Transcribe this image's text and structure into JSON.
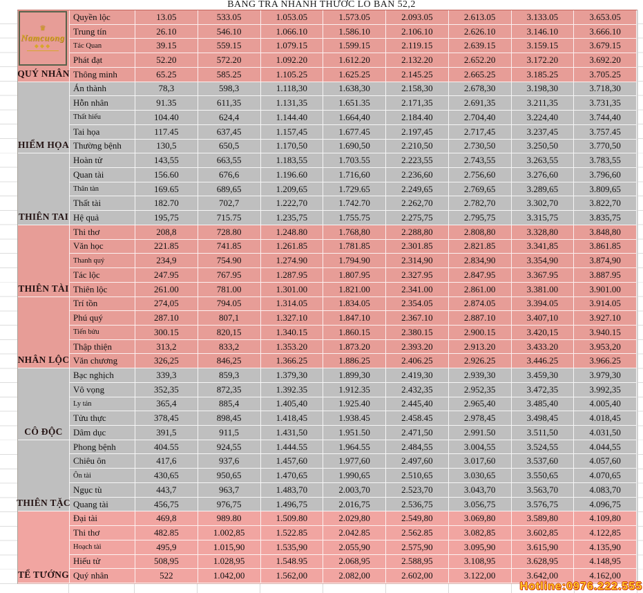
{
  "title": "BANG TRA NHANH THƯỚC LO BAN 52,2",
  "hotline": "Hotline:0976.222.555",
  "logo": {
    "brand": "Namcuong",
    "crown": "♛",
    "flourish": "◆◆◆"
  },
  "colors": {
    "pink": "#e79d97",
    "pink_bright": "#f1a5a1",
    "gray": "#bfbfbf"
  },
  "table": {
    "groups": [
      {
        "label": "QUÝ NHÂN",
        "color_key": "pink",
        "has_logo": true,
        "rows": [
          {
            "name": "Quyền lộc",
            "values": [
              "13.05",
              "533.05",
              "1.053.05",
              "1.573.05",
              "2.093.05",
              "2.613.05",
              "3.133.05",
              "3.653.05"
            ]
          },
          {
            "name": "Trung tín",
            "values": [
              "26.10",
              "546.10",
              "1.066.10",
              "1.586.10",
              "2.106.10",
              "2.626.10",
              "3.146.10",
              "3.666.10"
            ]
          },
          {
            "name": "Tác Quan",
            "small": true,
            "values": [
              "39.15",
              "559.15",
              "1.079.15",
              "1.599.15",
              "2.119.15",
              "2.639.15",
              "3.159.15",
              "3.679.15"
            ]
          },
          {
            "name": "Phát đạt",
            "values": [
              "52.20",
              "572.20",
              "1.092.20",
              "1.612.20",
              "2.132.20",
              "2.652.20",
              "3.172.20",
              "3.692.20"
            ]
          },
          {
            "name": "Thông minh",
            "values": [
              "65.25",
              "585.25",
              "1.105.25",
              "1.625.25",
              "2.145.25",
              "2.665.25",
              "3.185.25",
              "3.705.25"
            ]
          }
        ]
      },
      {
        "label": "HIỂM HỌA",
        "color_key": "gray",
        "rows": [
          {
            "name": "Án thành",
            "values": [
              "78,3",
              "598,3",
              "1.118,30",
              "1.638,30",
              "2.158,30",
              "2.678,30",
              "3.198,30",
              "3.718,30"
            ]
          },
          {
            "name": "Hỗn nhân",
            "values": [
              "91.35",
              "611,35",
              "1.131,35",
              "1.651.35",
              "2.171,35",
              "2.691,35",
              "3.211,35",
              "3.731,35"
            ]
          },
          {
            "name": "Thất hiếu",
            "small": true,
            "values": [
              "104.40",
              "624,4",
              "1.144.40",
              "1.664,40",
              "2.184.40",
              "2.704,40",
              "3.224,40",
              "3.744,40"
            ]
          },
          {
            "name": "Tai họa",
            "values": [
              "117.45",
              "637,45",
              "1.157,45",
              "1.677.45",
              "2.197,45",
              "2.717,45",
              "3.237,45",
              "3.757.45"
            ]
          },
          {
            "name": "Thường bệnh",
            "values": [
              "130,5",
              "650,5",
              "1.170,50",
              "1.690,50",
              "2.210,50",
              "2.730,50",
              "3.250,50",
              "3.770,50"
            ]
          }
        ]
      },
      {
        "label": "THIÊN TAI",
        "color_key": "gray",
        "rows": [
          {
            "name": "Hoàn tử",
            "values": [
              "143,55",
              "663,55",
              "1.183,55",
              "1.703.55",
              "2.223,55",
              "2.743,55",
              "3.263,55",
              "3.783,55"
            ]
          },
          {
            "name": "Quan tài",
            "values": [
              "156.60",
              "676,6",
              "1.196.60",
              "1.716,60",
              "2.236,60",
              "2.756,60",
              "3.276,60",
              "3.796,60"
            ]
          },
          {
            "name": "Thân tàn",
            "small": true,
            "values": [
              "169.65",
              "689,65",
              "1.209,65",
              "1.729.65",
              "2.249,65",
              "2.769,65",
              "3.289,65",
              "3.809,65"
            ]
          },
          {
            "name": "Thất tài",
            "values": [
              "182.70",
              "702,7",
              "1.222,70",
              "1.742.70",
              "2.262,70",
              "2.782,70",
              "3.302,70",
              "3.822,70"
            ]
          },
          {
            "name": "Hệ quả",
            "values": [
              "195,75",
              "715.75",
              "1.235,75",
              "1.755.75",
              "2.275,75",
              "2.795,75",
              "3.315,75",
              "3.835,75"
            ]
          }
        ]
      },
      {
        "label": "THIÊN TÀI",
        "color_key": "pink",
        "rows": [
          {
            "name": "Thi thơ",
            "values": [
              "208,8",
              "728.80",
              "1.248.80",
              "1.768,80",
              "2.288,80",
              "2.808,80",
              "3.328,80",
              "3.848,80"
            ]
          },
          {
            "name": "Văn học",
            "values": [
              "221.85",
              "741.85",
              "1.261.85",
              "1.781.85",
              "2.301.85",
              "2.821.85",
              "3.341,85",
              "3.861.85"
            ]
          },
          {
            "name": "Thanh quý",
            "small": true,
            "values": [
              "234,9",
              "754.90",
              "1.274.90",
              "1.794.90",
              "2.314,90",
              "2.834,90",
              "3.354,90",
              "3.874,90"
            ]
          },
          {
            "name": "Tác lộc",
            "values": [
              "247.95",
              "767.95",
              "1.287.95",
              "1.807.95",
              "2.327.95",
              "2.847.95",
              "3.367.95",
              "3.887.95"
            ]
          },
          {
            "name": "Thiên lộc",
            "values": [
              "261.00",
              "781.00",
              "1.301.00",
              "1.821.00",
              "2.341.00",
              "2.861.00",
              "3.381.00",
              "3.901.00"
            ]
          }
        ]
      },
      {
        "label": "NHÂN LỘC",
        "color_key": "pink",
        "rows": [
          {
            "name": "Trí tồn",
            "values": [
              "274,05",
              "794.05",
              "1.314.05",
              "1.834.05",
              "2.354.05",
              "2.874.05",
              "3.394.05",
              "3.914.05"
            ]
          },
          {
            "name": "Phú quý",
            "values": [
              "287.10",
              "807,1",
              "1.327.10",
              "1.847.10",
              "2.367.10",
              "2.887.10",
              "3.407,10",
              "3.927.10"
            ]
          },
          {
            "name": "Tiến bửu",
            "small": true,
            "values": [
              "300.15",
              "820,15",
              "1.340.15",
              "1.860.15",
              "2.380.15",
              "2.900.15",
              "3.420,15",
              "3.940.15"
            ]
          },
          {
            "name": "Thập thiện",
            "values": [
              "313,2",
              "833,2",
              "1.353.20",
              "1.873.20",
              "2.393.20",
              "2.913.20",
              "3.433.20",
              "3.953,20"
            ]
          },
          {
            "name": "Văn chương",
            "values": [
              "326,25",
              "846,25",
              "1.366.25",
              "1.886.25",
              "2.406.25",
              "2.926.25",
              "3.446.25",
              "3.966.25"
            ]
          }
        ]
      },
      {
        "label": "CÔ ĐỘC",
        "color_key": "gray",
        "rows": [
          {
            "name": "Bạc nghịch",
            "values": [
              "339,3",
              "859,3",
              "1.379,30",
              "1.899,30",
              "2.419,30",
              "2.939,30",
              "3.459,30",
              "3.979,30"
            ]
          },
          {
            "name": "Vô vọng",
            "values": [
              "352,35",
              "872,35",
              "1.392.35",
              "1.912.35",
              "2.432,35",
              "2.952,35",
              "3.472,35",
              "3.992,35"
            ]
          },
          {
            "name": "Ly tán",
            "small": true,
            "values": [
              "365,4",
              "885,4",
              "1.405,40",
              "1.925.40",
              "2.445,40",
              "2.965,40",
              "3.485,40",
              "4.005,40"
            ]
          },
          {
            "name": "Tửu thực",
            "values": [
              "378,45",
              "898,45",
              "1.418,45",
              "1.938.45",
              "2.458.45",
              "2.978,45",
              "3.498,45",
              "4.018,45"
            ]
          },
          {
            "name": "Dâm dục",
            "values": [
              "391,5",
              "911,5",
              "1.431,50",
              "1.951.50",
              "2.471,50",
              "2.991.50",
              "3.511,50",
              "4.031,50"
            ]
          }
        ]
      },
      {
        "label": "THIÊN TẶC",
        "color_key": "gray",
        "rows": [
          {
            "name": "Phong bệnh",
            "values": [
              "404.55",
              "924,55",
              "1.444.55",
              "1.964.55",
              "2.484,55",
              "3.004,55",
              "3.524,55",
              "4.044,55"
            ]
          },
          {
            "name": "Chiêu ôn",
            "values": [
              "417,6",
              "937,6",
              "1.457,60",
              "1.977,60",
              "2.497,60",
              "3.017,60",
              "3.537,60",
              "4.057,60"
            ]
          },
          {
            "name": "Ôn tài",
            "small": true,
            "values": [
              "430,65",
              "950,65",
              "1.470,65",
              "1.990,65",
              "2.510,65",
              "3.030,65",
              "3.550,65",
              "4.070,65"
            ]
          },
          {
            "name": "Ngục tù",
            "values": [
              "443,7",
              "963,7",
              "1.483,70",
              "2.003,70",
              "2.523,70",
              "3.043,70",
              "3.563,70",
              "4.083,70"
            ]
          },
          {
            "name": "Quang tài",
            "values": [
              "456,75",
              "976,75",
              "1.496,75",
              "2.016,75",
              "2.536,75",
              "3.056,75",
              "3.576,75",
              "4.096,75"
            ]
          }
        ]
      },
      {
        "label": "TỂ TƯỚNG",
        "color_key": "pink_bright",
        "rows": [
          {
            "name": "Đại tài",
            "values": [
              "469,8",
              "989.80",
              "1.509.80",
              "2.029,80",
              "2.549,80",
              "3.069,80",
              "3.589,80",
              "4.109,80"
            ]
          },
          {
            "name": "Thi thơ",
            "values": [
              "482.85",
              "1.002,85",
              "1.522.85",
              "2.042.85",
              "2.562.85",
              "3.082,85",
              "3.602,85",
              "4.122,85"
            ]
          },
          {
            "name": "Hoạch tài",
            "small": true,
            "values": [
              "495,9",
              "1.015,90",
              "1.535,90",
              "2.055,90",
              "2.575,90",
              "3.095,90",
              "3.615,90",
              "4.135,90"
            ]
          },
          {
            "name": "Hiếu tử",
            "values": [
              "508,95",
              "1.028,95",
              "1.548.95",
              "2.068,95",
              "2.588,95",
              "3.108,95",
              "3.628,95",
              "4.148,95"
            ]
          },
          {
            "name": "Quý nhân",
            "values": [
              "522",
              "1.042,00",
              "1.562,00",
              "2.082,00",
              "2.602,00",
              "3.122,00",
              "3.642,00",
              "4.162,00"
            ]
          }
        ]
      }
    ]
  }
}
